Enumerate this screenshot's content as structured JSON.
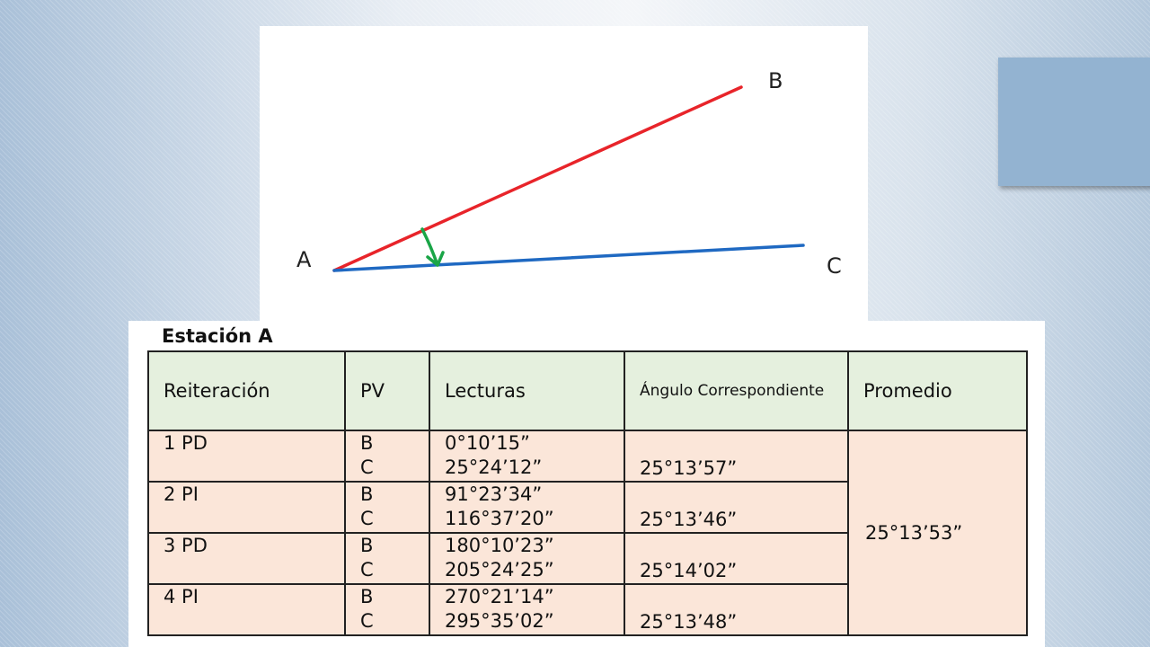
{
  "figure": {
    "points": {
      "a": "A",
      "b": "B",
      "c": "C"
    },
    "colors": {
      "ab_line": "#e8242a",
      "ac_line": "#1f69c2",
      "angle_arrow": "#1aa547"
    }
  },
  "station": {
    "title": "Estación A"
  },
  "table": {
    "headers": {
      "reiteracion": "Reiteración",
      "pv": "PV",
      "lecturas": "Lecturas",
      "angulo": "Ángulo Correspondiente",
      "promedio": "Promedio"
    },
    "rows": [
      {
        "reiteracion": "1   PD",
        "pv_b": "B",
        "pv_c": "C",
        "lectura_b": "0°10’15”",
        "lectura_c": "25°24’12”",
        "angulo": "25°13’57”"
      },
      {
        "reiteracion": "2   PI",
        "pv_b": "B",
        "pv_c": "C",
        "lectura_b": "91°23’34”",
        "lectura_c": "116°37’20”",
        "angulo": "25°13’46”"
      },
      {
        "reiteracion": "3   PD",
        "pv_b": "B",
        "pv_c": "C",
        "lectura_b": "180°10’23”",
        "lectura_c": "205°24’25”",
        "angulo": "25°14’02”"
      },
      {
        "reiteracion": "4   PI",
        "pv_b": "B",
        "pv_c": "C",
        "lectura_b": "270°21’14”",
        "lectura_c": "295°35’02”",
        "angulo": "25°13’48”"
      }
    ],
    "promedio": "25°13’53”"
  }
}
